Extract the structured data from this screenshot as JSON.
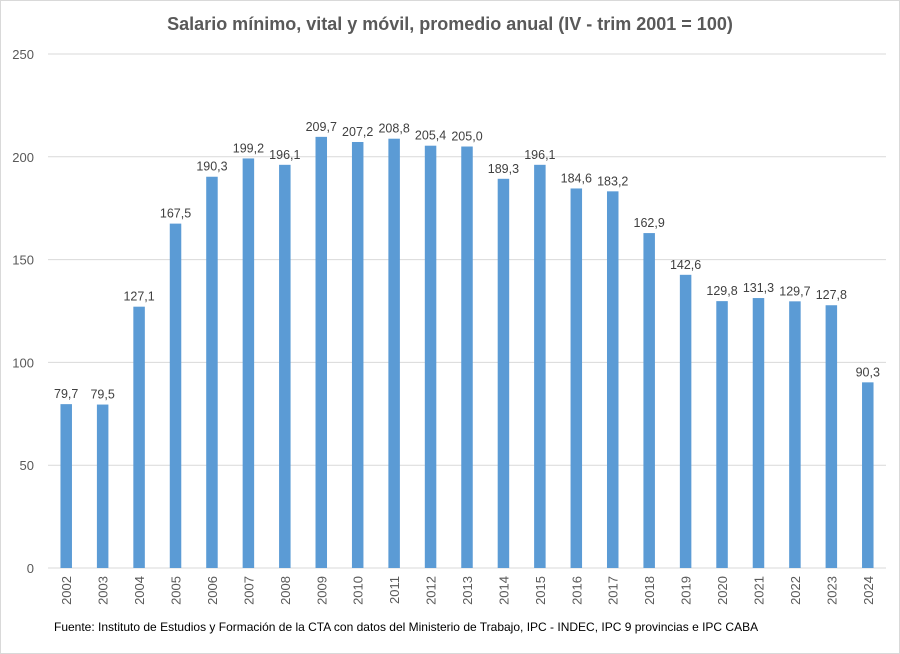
{
  "chart_data": {
    "type": "bar",
    "title": "Salario mínimo, vital y móvil, promedio anual (IV - trim 2001 = 100)",
    "source": "Fuente: Instituto de Estudios y Formación de la CTA con datos del Ministerio de Trabajo, IPC - INDEC, IPC 9 provincias e IPC CABA",
    "categories": [
      "2002",
      "2003",
      "2004",
      "2005",
      "2006",
      "2007",
      "2008",
      "2009",
      "2010",
      "2011",
      "2012",
      "2013",
      "2014",
      "2015",
      "2016",
      "2017",
      "2018",
      "2019",
      "2020",
      "2021",
      "2022",
      "2023",
      "2024"
    ],
    "values": [
      79.7,
      79.5,
      127.1,
      167.5,
      190.3,
      199.2,
      196.1,
      209.7,
      207.2,
      208.8,
      205.4,
      205.0,
      189.3,
      196.1,
      184.6,
      183.2,
      162.9,
      142.6,
      129.8,
      131.3,
      129.7,
      127.8,
      90.3
    ],
    "value_labels": [
      "79,7",
      "79,5",
      "127,1",
      "167,5",
      "190,3",
      "199,2",
      "196,1",
      "209,7",
      "207,2",
      "208,8",
      "205,4",
      "205,0",
      "189,3",
      "196,1",
      "184,6",
      "183,2",
      "162,9",
      "142,6",
      "129,8",
      "131,3",
      "129,7",
      "127,8",
      "90,3"
    ],
    "ylim": [
      0,
      250
    ],
    "yticks": [
      "0",
      "50",
      "100",
      "150",
      "200",
      "250"
    ],
    "grid": true,
    "bar_color": "#5b9bd5",
    "grid_color": "#d9d9d9"
  }
}
